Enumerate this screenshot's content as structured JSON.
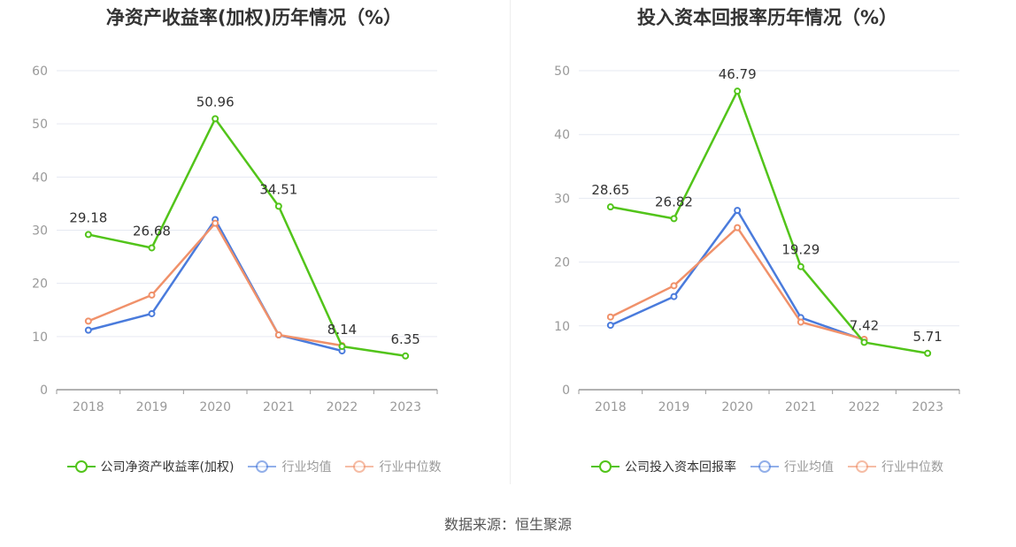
{
  "source": "数据来源：恒生聚源",
  "chart_data": [
    {
      "type": "line",
      "title": "净资产收益率(加权)历年情况（%）",
      "categories": [
        "2018",
        "2019",
        "2020",
        "2021",
        "2022",
        "2023"
      ],
      "ylim": [
        0,
        60
      ],
      "yticks": [
        0,
        10,
        20,
        30,
        40,
        50,
        60
      ],
      "grid": true,
      "legend_position": "bottom",
      "series": [
        {
          "name": "公司净资产收益率(加权)",
          "color": "#52c41a",
          "values": [
            29.18,
            26.68,
            50.96,
            34.51,
            8.14,
            6.35
          ],
          "labels": [
            "29.18",
            "26.68",
            "50.96",
            "34.51",
            "8.14",
            "6.35"
          ]
        },
        {
          "name": "行业均值",
          "color": "#4a7bdc",
          "values": [
            11.2,
            14.3,
            32.0,
            10.3,
            7.3,
            null
          ]
        },
        {
          "name": "行业中位数",
          "color": "#f0916a",
          "values": [
            12.9,
            17.8,
            31.3,
            10.3,
            8.3,
            null
          ]
        }
      ]
    },
    {
      "type": "line",
      "title": "投入资本回报率历年情况（%）",
      "categories": [
        "2018",
        "2019",
        "2020",
        "2021",
        "2022",
        "2023"
      ],
      "ylim": [
        0,
        50
      ],
      "yticks": [
        0,
        10,
        20,
        30,
        40,
        50
      ],
      "grid": true,
      "legend_position": "bottom",
      "series": [
        {
          "name": "公司投入资本回报率",
          "color": "#52c41a",
          "values": [
            28.65,
            26.82,
            46.79,
            19.29,
            7.42,
            5.71
          ],
          "labels": [
            "28.65",
            "26.82",
            "46.79",
            "19.29",
            "7.42",
            "5.71"
          ]
        },
        {
          "name": "行业均值",
          "color": "#4a7bdc",
          "values": [
            10.1,
            14.6,
            28.1,
            11.3,
            7.8,
            null
          ]
        },
        {
          "name": "行业中位数",
          "color": "#f0916a",
          "values": [
            11.4,
            16.3,
            25.4,
            10.6,
            7.9,
            null
          ]
        }
      ]
    }
  ]
}
